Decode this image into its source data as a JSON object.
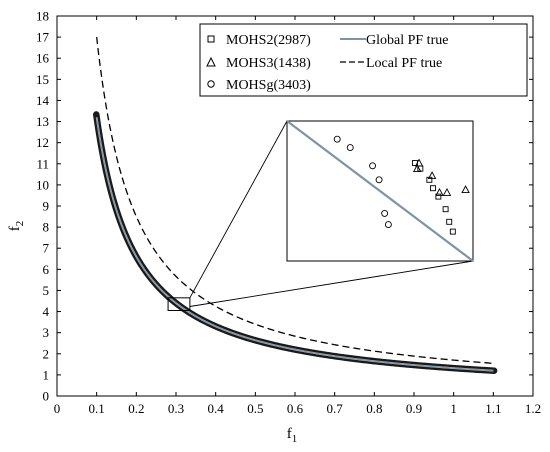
{
  "chart_data": {
    "type": "scatter",
    "xlabel": "f",
    "xlabel_sub": "1",
    "ylabel": "f",
    "ylabel_sub": "2",
    "xlim": [
      0,
      1.2
    ],
    "ylim": [
      0,
      18
    ],
    "xticks": [
      0,
      0.1,
      0.2,
      0.3,
      0.4,
      0.5,
      0.6,
      0.7,
      0.8,
      0.9,
      1,
      1.1,
      1.2
    ],
    "yticks": [
      0,
      1,
      2,
      3,
      4,
      5,
      6,
      7,
      8,
      9,
      10,
      11,
      12,
      13,
      14,
      15,
      16,
      17,
      18
    ],
    "legend": {
      "position": "top-right",
      "entries": [
        {
          "label": "MOHS2(2987)",
          "marker": "square"
        },
        {
          "label": "Global PF true",
          "marker": "solid-line"
        },
        {
          "label": "MOHS3(1438)",
          "marker": "triangle"
        },
        {
          "label": "Local PF true",
          "marker": "dashed-line"
        },
        {
          "label": "MOHSg(3403)",
          "marker": "circle"
        }
      ]
    },
    "series": [
      {
        "name": "Global PF true",
        "style": "solid",
        "color": "#7f93a6",
        "function": "f2 = 1.32 / f1",
        "x_range": [
          0.1,
          1.1
        ]
      },
      {
        "name": "Local PF true",
        "style": "dashed",
        "color": "#000000",
        "function": "f2 = 1.7 / f1",
        "x_range": [
          0.1,
          1.1
        ]
      },
      {
        "name": "MOHS2(2987)",
        "marker": "square",
        "color": "#000000",
        "x_range": [
          0.1,
          1.1
        ]
      },
      {
        "name": "MOHS3(1438)",
        "marker": "triangle",
        "color": "#000000",
        "x_range": [
          0.1,
          1.1
        ]
      },
      {
        "name": "MOHSg(3403)",
        "marker": "circle",
        "color": "#000000",
        "x_range": [
          0.1,
          1.1
        ]
      }
    ],
    "zoom": {
      "region_x": [
        0.28,
        0.335
      ],
      "region_y": [
        4.05,
        4.65
      ],
      "squares": [
        [
          0.74,
          0.2
        ],
        [
          0.77,
          0.24
        ],
        [
          0.82,
          0.32
        ],
        [
          0.84,
          0.38
        ],
        [
          0.87,
          0.44
        ],
        [
          0.91,
          0.53
        ],
        [
          0.93,
          0.62
        ],
        [
          0.95,
          0.69
        ]
      ],
      "triangles": [
        [
          0.7,
          0.22
        ],
        [
          0.71,
          0.18
        ],
        [
          0.78,
          0.27
        ],
        [
          0.82,
          0.39
        ],
        [
          0.86,
          0.39
        ],
        [
          0.96,
          0.37
        ]
      ],
      "circles": [
        [
          0.4,
          0.13
        ],
        [
          0.54,
          0.19
        ],
        [
          0.78,
          0.32
        ],
        [
          0.85,
          0.42
        ],
        [
          0.91,
          0.66
        ],
        [
          0.95,
          0.74
        ]
      ]
    }
  }
}
